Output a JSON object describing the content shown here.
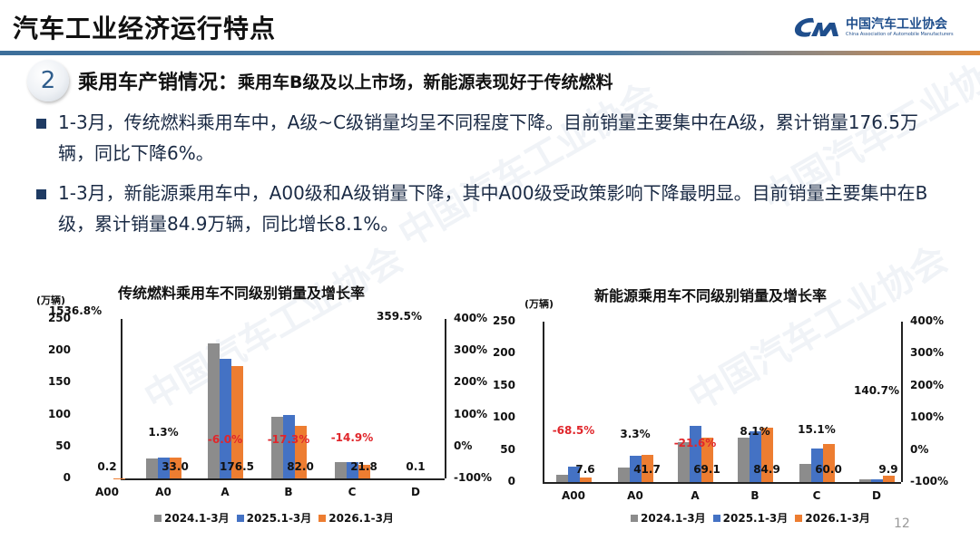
{
  "header": {
    "title": "汽车工业经济运行特点",
    "logo_cn": "中国汽车工业协会",
    "logo_en": "China Association of Automobile Manufacturers",
    "line_colors": [
      "#3d6f9a",
      "#e08a3c"
    ]
  },
  "section": {
    "number": "2",
    "heading": "乘用车产销情况：",
    "subheading": "乘用车B级及以上市场，新能源表现好于传统燃料"
  },
  "bullets": [
    {
      "text": "1-3月，传统燃料乘用车中，A级~C级销量均呈不同程度下降。目前销量主要集中在A级，累计销量176.5万辆，同比下降6%。"
    },
    {
      "text": "1-3月，新能源乘用车中，A00级和A级销量下降，其中A00级受政策影响下降最明显。目前销量主要集中在B级，累计销量84.9万辆，同比增长8.1%。"
    }
  ],
  "page_number": "12",
  "watermark": "中国汽车工业协会",
  "colors": {
    "series_2024": "#8c8c8c",
    "series_2025": "#4472c4",
    "series_2026": "#ed7d31",
    "negative_label": "#e0262b",
    "positive_label": "#111111"
  },
  "chart_data": [
    {
      "type": "bar",
      "title": "传统燃料乘用车不同级别销量及增长率",
      "ylabel": "(万辆)",
      "ylim": [
        0,
        250
      ],
      "yticks": [
        "250",
        "200",
        "150",
        "100",
        "50",
        "0"
      ],
      "y2lim": [
        -100,
        400
      ],
      "y2ticks": [
        "400%",
        "300%",
        "200%",
        "100%",
        "0%",
        "-100%"
      ],
      "categories": [
        "A00",
        "A0",
        "A",
        "B",
        "C",
        "D"
      ],
      "series": [
        {
          "name": "2024.1-3月",
          "values": [
            0.1,
            31,
            211,
            96,
            26,
            0.1
          ]
        },
        {
          "name": "2025.1-3月",
          "values": [
            0.01,
            32.6,
            187.8,
            99.2,
            25.6,
            0.02
          ]
        },
        {
          "name": "2026.1-3月",
          "values": [
            0.2,
            33.0,
            176.5,
            82.0,
            21.8,
            0.1
          ]
        }
      ],
      "value_labels": [
        "0.2",
        "33.0",
        "176.5",
        "82.0",
        "21.8",
        "0.1"
      ],
      "growth_labels": [
        "1536.8%",
        "1.3%",
        "-6.0%",
        "-17.3%",
        "-14.9%",
        "359.5%"
      ],
      "growth_negative": [
        false,
        false,
        true,
        true,
        true,
        false
      ],
      "grid": false,
      "legend_position": "bottom"
    },
    {
      "type": "bar",
      "title": "新能源乘用车不同级别销量及增长率",
      "ylabel": "(万辆)",
      "ylim": [
        0,
        250
      ],
      "yticks": [
        "250",
        "200",
        "150",
        "100",
        "50",
        "0"
      ],
      "y2lim": [
        -100,
        400
      ],
      "y2ticks": [
        "400%",
        "300%",
        "200%",
        "100%",
        "0%",
        "-100%"
      ],
      "categories": [
        "A00",
        "A0",
        "A",
        "B",
        "C",
        "D"
      ],
      "series": [
        {
          "name": "2024.1-3月",
          "values": [
            12,
            23,
            62,
            69,
            28,
            4
          ]
        },
        {
          "name": "2025.1-3月",
          "values": [
            24.1,
            40.4,
            88.1,
            78.5,
            52.1,
            4.1
          ]
        },
        {
          "name": "2026.1-3月",
          "values": [
            7.6,
            41.7,
            69.1,
            84.9,
            60.0,
            9.9
          ]
        }
      ],
      "value_labels": [
        "7.6",
        "41.7",
        "69.1",
        "84.9",
        "60.0",
        "9.9"
      ],
      "growth_labels": [
        "-68.5%",
        "3.3%",
        "-21.6%",
        "8.1%",
        "15.1%",
        "140.7%"
      ],
      "growth_negative": [
        true,
        false,
        true,
        false,
        false,
        false
      ],
      "grid": false,
      "legend_position": "bottom"
    }
  ],
  "legend": [
    "2024.1-3月",
    "2025.1-3月",
    "2026.1-3月"
  ]
}
